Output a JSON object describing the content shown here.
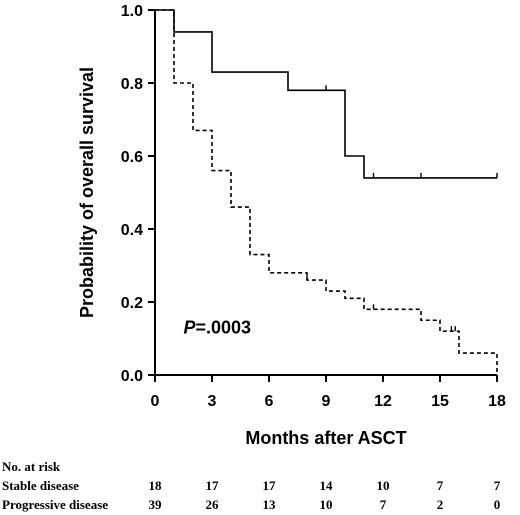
{
  "chart_data": {
    "type": "line",
    "title": "",
    "xlabel": "Months after ASCT",
    "ylabel": "Probability of overall survival",
    "xlim": [
      0,
      18
    ],
    "ylim": [
      0,
      1.0
    ],
    "x_ticks": [
      0,
      3,
      6,
      9,
      12,
      15,
      18
    ],
    "y_ticks": [
      0.0,
      0.2,
      0.4,
      0.6,
      0.8,
      1.0
    ],
    "y_tick_labels": [
      "0.0",
      "0.2",
      "0.4",
      "0.6",
      "0.8",
      "1.0"
    ],
    "grid": false,
    "series": [
      {
        "name": "Stable disease",
        "style": "solid",
        "steps": [
          [
            0,
            1.0
          ],
          [
            1,
            0.94
          ],
          [
            3,
            0.83
          ],
          [
            7,
            0.78
          ],
          [
            10,
            0.6
          ],
          [
            11,
            0.54
          ],
          [
            18,
            0.54
          ]
        ],
        "censored_x": [
          9,
          11.5,
          14,
          18
        ]
      },
      {
        "name": "Progressive disease",
        "style": "dashed",
        "steps": [
          [
            0,
            1.0
          ],
          [
            1,
            0.8
          ],
          [
            2,
            0.67
          ],
          [
            3,
            0.56
          ],
          [
            4,
            0.46
          ],
          [
            5,
            0.33
          ],
          [
            6,
            0.28
          ],
          [
            8,
            0.26
          ],
          [
            9,
            0.23
          ],
          [
            10,
            0.21
          ],
          [
            11,
            0.18
          ],
          [
            14,
            0.15
          ],
          [
            15,
            0.12
          ],
          [
            16,
            0.06
          ],
          [
            18,
            0.0
          ]
        ],
        "censored_x": [
          8,
          11.5,
          15.6,
          15.8
        ]
      }
    ],
    "annotation": {
      "prefix": "P",
      "text": "=.0003",
      "x": 1.5,
      "y": 0.13
    },
    "risk_table": {
      "header": "No. at risk",
      "times": [
        0,
        3,
        6,
        9,
        12,
        15,
        18
      ],
      "rows": [
        {
          "label": "Stable disease",
          "values": [
            "18",
            "17",
            "17",
            "14",
            "10",
            "7",
            "7"
          ]
        },
        {
          "label": "Progressive disease",
          "values": [
            "39",
            "26",
            "13",
            "10",
            "7",
            "2",
            "0"
          ]
        }
      ]
    }
  }
}
